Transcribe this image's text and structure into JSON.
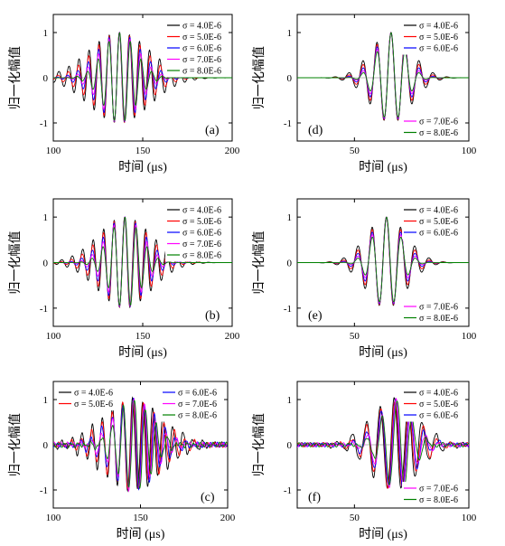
{
  "chart_data": [
    {
      "type": "line",
      "panel": "(a)",
      "xlabel": "时间 (μs)",
      "ylabel": "归一化幅值",
      "xlim": [
        100,
        200
      ],
      "ylim": [
        -1.4,
        1.4
      ],
      "xticks": [
        100,
        150,
        200
      ],
      "yticks": [
        -1,
        0,
        1
      ],
      "grid": false,
      "legend": [
        {
          "placement": "top-right",
          "entries": [
            0,
            1,
            2,
            3,
            4
          ]
        }
      ],
      "wave": {
        "t0": 137,
        "period": 6.0,
        "width": 11.0,
        "offset": 2.4,
        "drift": 0.04,
        "noise": 0
      },
      "series": [
        {
          "name": "σ = 4.0E-6",
          "color": "#000000",
          "scale": 1.55,
          "phase": 0.8
        },
        {
          "name": "σ = 5.0E-6",
          "color": "#ff0000",
          "scale": 1.3,
          "phase": 0.6
        },
        {
          "name": "σ = 6.0E-6",
          "color": "#0000ff",
          "scale": 1.1,
          "phase": 0.4
        },
        {
          "name": "σ = 7.0E-6",
          "color": "#ff00ff",
          "scale": 0.95,
          "phase": 0.2
        },
        {
          "name": "σ = 8.0E-6",
          "color": "#008000",
          "scale": 0.82,
          "phase": 0.0
        }
      ]
    },
    {
      "type": "line",
      "panel": "(b)",
      "xlabel": "时间 (μs)",
      "ylabel": "归一化幅值",
      "xlim": [
        100,
        200
      ],
      "ylim": [
        -1.4,
        1.4
      ],
      "xticks": [
        100,
        150,
        200
      ],
      "yticks": [
        -1,
        0,
        1
      ],
      "grid": false,
      "legend": [
        {
          "placement": "top-right",
          "entries": [
            0,
            1,
            2,
            3,
            4
          ]
        }
      ],
      "wave": {
        "t0": 140,
        "period": 6.2,
        "width": 10.0,
        "offset": 2.2,
        "drift": 0.05,
        "noise": 0
      },
      "series": [
        {
          "name": "σ = 4.0E-6",
          "color": "#000000",
          "scale": 1.5,
          "phase": 0.7
        },
        {
          "name": "σ = 5.0E-6",
          "color": "#ff0000",
          "scale": 1.3,
          "phase": 0.5
        },
        {
          "name": "σ = 6.0E-6",
          "color": "#0000ff",
          "scale": 1.12,
          "phase": 0.3
        },
        {
          "name": "σ = 7.0E-6",
          "color": "#ff00ff",
          "scale": 0.98,
          "phase": 0.15
        },
        {
          "name": "σ = 8.0E-6",
          "color": "#008000",
          "scale": 0.85,
          "phase": 0.0
        }
      ]
    },
    {
      "type": "line",
      "panel": "(c)",
      "xlabel": "时间 (μs)",
      "ylabel": "归一化幅值",
      "xlim": [
        100,
        200
      ],
      "ylim": [
        -1.4,
        1.4
      ],
      "xticks": [
        100,
        150,
        200
      ],
      "yticks": [
        -1,
        0,
        1
      ],
      "grid": false,
      "legend": [
        {
          "placement": "top-left",
          "entries": [
            0,
            1
          ]
        },
        {
          "placement": "top-right",
          "entries": [
            2,
            3,
            4
          ]
        }
      ],
      "wave": {
        "t0": 146,
        "period": 6.2,
        "width": 12.0,
        "offset": 2.6,
        "drift": 0.25,
        "noise": 0.06
      },
      "series": [
        {
          "name": "σ = 4.0E-6",
          "color": "#000000",
          "scale": 1.45,
          "phase": 0.9
        },
        {
          "name": "σ = 5.0E-6",
          "color": "#ff0000",
          "scale": 1.25,
          "phase": 0.6
        },
        {
          "name": "σ = 6.0E-6",
          "color": "#0000ff",
          "scale": 1.08,
          "phase": 0.3
        },
        {
          "name": "σ = 7.0E-6",
          "color": "#ff00ff",
          "scale": 0.95,
          "phase": 0.1
        },
        {
          "name": "σ = 8.0E-6",
          "color": "#008000",
          "scale": 0.82,
          "phase": -0.2
        }
      ]
    },
    {
      "type": "line",
      "panel": "(d)",
      "xlabel": "时间 (μs)",
      "ylabel": "归一化幅值",
      "xlim": [
        25,
        100
      ],
      "ylim": [
        -1.4,
        1.4
      ],
      "xticks": [
        50,
        100
      ],
      "yticks": [
        -1,
        0,
        1
      ],
      "grid": false,
      "legend": [
        {
          "placement": "top-right",
          "entries": [
            0,
            1,
            2
          ]
        },
        {
          "placement": "bottom-right",
          "entries": [
            3,
            4
          ]
        }
      ],
      "wave": {
        "t0": 66,
        "period": 6.2,
        "width": 6.5,
        "offset": 0.6,
        "drift": 0.02,
        "noise": 0
      },
      "series": [
        {
          "name": "σ = 4.0E-6",
          "color": "#000000",
          "scale": 1.35,
          "phase": 0.1
        },
        {
          "name": "σ = 5.0E-6",
          "color": "#ff0000",
          "scale": 1.2,
          "phase": 0.08
        },
        {
          "name": "σ = 6.0E-6",
          "color": "#0000ff",
          "scale": 1.08,
          "phase": 0.05
        },
        {
          "name": "σ = 7.0E-6",
          "color": "#ff00ff",
          "scale": 0.98,
          "phase": 0.02
        },
        {
          "name": "σ = 8.0E-6",
          "color": "#008000",
          "scale": 0.9,
          "phase": 0.0
        }
      ]
    },
    {
      "type": "line",
      "panel": "(e)",
      "xlabel": "时间 (μs)",
      "ylabel": "归一化幅值",
      "xlim": [
        25,
        100
      ],
      "ylim": [
        -1.4,
        1.4
      ],
      "xticks": [
        50,
        100
      ],
      "yticks": [
        -1,
        0,
        1
      ],
      "grid": false,
      "legend": [
        {
          "placement": "top-right",
          "entries": [
            0,
            1,
            2
          ]
        },
        {
          "placement": "bottom-right",
          "entries": [
            3,
            4
          ]
        }
      ],
      "wave": {
        "t0": 64,
        "period": 6.4,
        "width": 6.5,
        "offset": 1.2,
        "drift": 0.03,
        "noise": 0
      },
      "series": [
        {
          "name": "σ = 4.0E-6",
          "color": "#000000",
          "scale": 1.35,
          "phase": 0.3
        },
        {
          "name": "σ = 5.0E-6",
          "color": "#ff0000",
          "scale": 1.2,
          "phase": 0.2
        },
        {
          "name": "σ = 6.0E-6",
          "color": "#0000ff",
          "scale": 1.08,
          "phase": 0.12
        },
        {
          "name": "σ = 7.0E-6",
          "color": "#ff00ff",
          "scale": 0.98,
          "phase": 0.05
        },
        {
          "name": "σ = 8.0E-6",
          "color": "#008000",
          "scale": 0.9,
          "phase": 0.0
        }
      ]
    },
    {
      "type": "line",
      "panel": "(f)",
      "xlabel": "时间 (μs)",
      "ylabel": "归一化幅值",
      "xlim": [
        25,
        100
      ],
      "ylim": [
        -1.4,
        1.4
      ],
      "xticks": [
        50,
        100
      ],
      "yticks": [
        -1,
        0,
        1
      ],
      "grid": false,
      "legend": [
        {
          "placement": "top-right",
          "entries": [
            0,
            1,
            2
          ]
        },
        {
          "placement": "bottom-right",
          "entries": [
            3,
            4
          ]
        }
      ],
      "wave": {
        "t0": 68,
        "period": 6.4,
        "width": 7.5,
        "offset": 1.8,
        "drift": 0.3,
        "noise": 0.05
      },
      "series": [
        {
          "name": "σ = 4.0E-6",
          "color": "#000000",
          "scale": 1.4,
          "phase": 0.6
        },
        {
          "name": "σ = 5.0E-6",
          "color": "#ff0000",
          "scale": 1.22,
          "phase": 0.4
        },
        {
          "name": "σ = 6.0E-6",
          "color": "#0000ff",
          "scale": 1.08,
          "phase": 0.2
        },
        {
          "name": "σ = 7.0E-6",
          "color": "#ff00ff",
          "scale": 0.96,
          "phase": 0.05
        },
        {
          "name": "σ = 8.0E-6",
          "color": "#008000",
          "scale": 0.86,
          "phase": -0.4
        }
      ]
    }
  ]
}
